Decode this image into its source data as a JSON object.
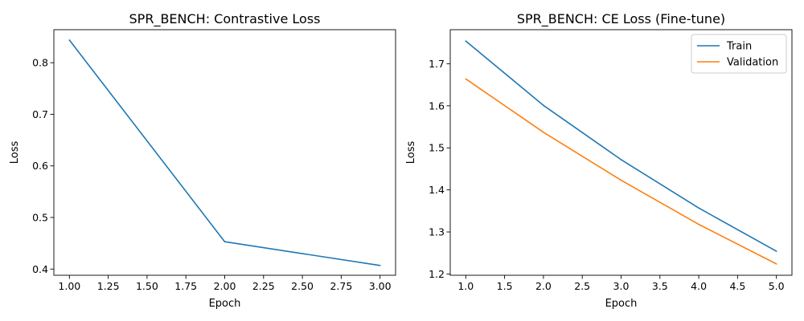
{
  "chart_data": [
    {
      "type": "line",
      "title": "SPR_BENCH: Contrastive Loss",
      "xlabel": "Epoch",
      "ylabel": "Loss",
      "xlim": [
        0.9,
        3.1
      ],
      "ylim": [
        0.388,
        0.864
      ],
      "xticks": [
        "1.00",
        "1.25",
        "1.50",
        "1.75",
        "2.00",
        "2.25",
        "2.50",
        "2.75",
        "3.00"
      ],
      "yticks": [
        "0.4",
        "0.5",
        "0.6",
        "0.7",
        "0.8"
      ],
      "grid": false,
      "legend": null,
      "series": [
        {
          "x": [
            1,
            2,
            3
          ],
          "values": [
            0.844,
            0.453,
            0.407
          ],
          "color": "#1f77b4"
        }
      ]
    },
    {
      "type": "line",
      "title": "SPR_BENCH: CE Loss (Fine-tune)",
      "xlabel": "Epoch",
      "ylabel": "Loss",
      "xlim": [
        0.8,
        5.2
      ],
      "ylim": [
        1.197,
        1.781
      ],
      "xticks": [
        "1.0",
        "1.5",
        "2.0",
        "2.5",
        "3.0",
        "3.5",
        "4.0",
        "4.5",
        "5.0"
      ],
      "yticks": [
        "1.2",
        "1.3",
        "1.4",
        "1.5",
        "1.6",
        "1.7"
      ],
      "grid": false,
      "legend": "top-right",
      "series": [
        {
          "name": "Train",
          "x": [
            1,
            2,
            3,
            4,
            5
          ],
          "values": [
            1.754,
            1.601,
            1.472,
            1.357,
            1.254
          ],
          "color": "#1f77b4"
        },
        {
          "name": "Validation",
          "x": [
            1,
            2,
            3,
            4,
            5
          ],
          "values": [
            1.664,
            1.537,
            1.423,
            1.318,
            1.224
          ],
          "color": "#ff7f0e"
        }
      ]
    }
  ]
}
